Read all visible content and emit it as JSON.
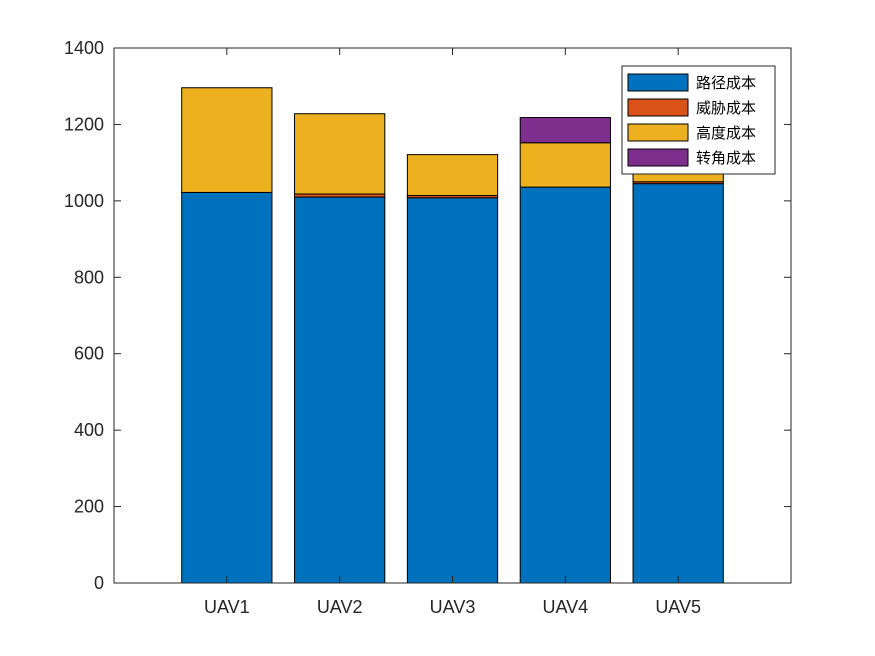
{
  "chart_data": {
    "type": "bar",
    "stacked": true,
    "categories": [
      "UAV1",
      "UAV2",
      "UAV3",
      "UAV4",
      "UAV5"
    ],
    "series": [
      {
        "name": "路径成本",
        "color": "#0072BD",
        "values": [
          1022,
          1010,
          1008,
          1036,
          1045
        ]
      },
      {
        "name": "威胁成本",
        "color": "#D95319",
        "values": [
          0,
          8,
          6,
          0,
          5
        ]
      },
      {
        "name": "高度成本",
        "color": "#EDB120",
        "values": [
          274,
          210,
          107,
          116,
          115
        ]
      },
      {
        "name": "转角成本",
        "color": "#7E2F8E",
        "values": [
          0,
          0,
          0,
          66,
          0
        ]
      }
    ],
    "ylim": [
      0,
      1400
    ],
    "yticks": [
      0,
      200,
      400,
      600,
      800,
      1000,
      1200,
      1400
    ],
    "title": "",
    "xlabel": "",
    "ylabel": "",
    "legend_position": "top-right",
    "grid": false
  }
}
